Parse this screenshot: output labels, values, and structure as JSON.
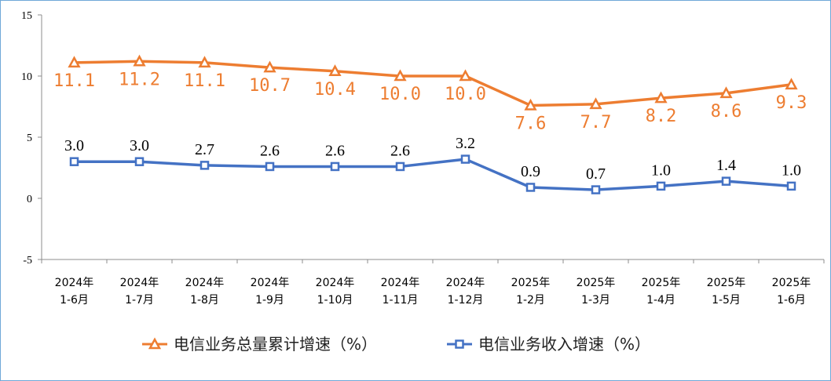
{
  "chart_data": {
    "type": "line",
    "categories": [
      [
        "2024年",
        "1-6月"
      ],
      [
        "2024年",
        "1-7月"
      ],
      [
        "2024年",
        "1-8月"
      ],
      [
        "2024年",
        "1-9月"
      ],
      [
        "2024年",
        "1-10月"
      ],
      [
        "2024年",
        "1-11月"
      ],
      [
        "2024年",
        "1-12月"
      ],
      [
        "2025年",
        "1-2月"
      ],
      [
        "2025年",
        "1-3月"
      ],
      [
        "2025年",
        "1-4月"
      ],
      [
        "2025年",
        "1-5月"
      ],
      [
        "2025年",
        "1-6月"
      ]
    ],
    "series": [
      {
        "name": "电信业务总量累计增速（%）",
        "values": [
          11.1,
          11.2,
          11.1,
          10.7,
          10.4,
          10.0,
          10.0,
          7.6,
          7.7,
          8.2,
          8.6,
          9.3
        ],
        "labels": [
          "11.1",
          "11.2",
          "11.1",
          "10.7",
          "10.4",
          "10.0",
          "10.0",
          "7.6",
          "7.7",
          "8.2",
          "8.6",
          "9.3"
        ],
        "color": "#ED7D31",
        "marker": "triangle"
      },
      {
        "name": "电信业务收入增速（%）",
        "values": [
          3.0,
          3.0,
          2.7,
          2.6,
          2.6,
          2.6,
          3.2,
          0.9,
          0.7,
          1.0,
          1.4,
          1.0
        ],
        "labels": [
          "3.0",
          "3.0",
          "2.7",
          "2.6",
          "2.6",
          "2.6",
          "3.2",
          "0.9",
          "0.7",
          "1.0",
          "1.4",
          "1.0"
        ],
        "color": "#4472C4",
        "marker": "square"
      }
    ],
    "ylim": [
      -5,
      15
    ],
    "yticks": [
      "15",
      "10",
      "5",
      "0",
      "-5"
    ],
    "grid": false,
    "legend_position": "bottom"
  }
}
